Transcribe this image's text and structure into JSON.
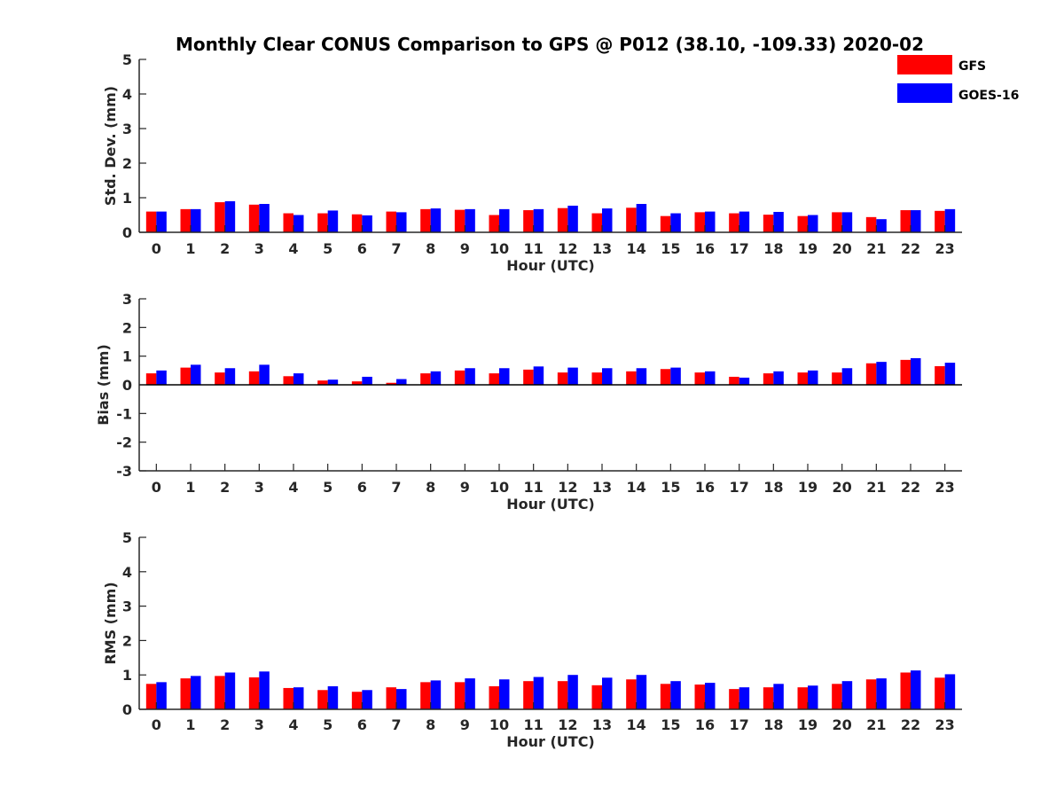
{
  "title": "Monthly Clear CONUS Comparison to GPS @ P012 (38.10, -109.33) 2020-02",
  "legend": {
    "placement": "top-right",
    "items": [
      {
        "name": "GFS",
        "color": "#ff0000"
      },
      {
        "name": "GOES-16",
        "color": "#0000ff"
      }
    ]
  },
  "chart_data": [
    {
      "type": "bar",
      "xlabel": "Hour (UTC)",
      "ylabel": "Std. Dev. (mm)",
      "ylim": [
        0,
        5
      ],
      "yticks": [
        0,
        1,
        2,
        3,
        4,
        5
      ],
      "categories": [
        "0",
        "1",
        "2",
        "3",
        "4",
        "5",
        "6",
        "7",
        "8",
        "9",
        "10",
        "11",
        "12",
        "13",
        "14",
        "15",
        "16",
        "17",
        "18",
        "19",
        "20",
        "21",
        "22",
        "23"
      ],
      "series": [
        {
          "name": "GFS",
          "color": "#ff0000",
          "values": [
            0.6,
            0.67,
            0.87,
            0.8,
            0.55,
            0.55,
            0.52,
            0.6,
            0.67,
            0.65,
            0.5,
            0.64,
            0.7,
            0.55,
            0.71,
            0.47,
            0.58,
            0.55,
            0.51,
            0.47,
            0.58,
            0.44,
            0.64,
            0.62
          ]
        },
        {
          "name": "GOES-16",
          "color": "#0000ff",
          "values": [
            0.6,
            0.67,
            0.9,
            0.82,
            0.5,
            0.63,
            0.49,
            0.58,
            0.69,
            0.67,
            0.67,
            0.67,
            0.77,
            0.69,
            0.82,
            0.55,
            0.6,
            0.6,
            0.59,
            0.5,
            0.58,
            0.38,
            0.64,
            0.67
          ]
        }
      ]
    },
    {
      "type": "bar",
      "xlabel": "Hour (UTC)",
      "ylabel": "Bias (mm)",
      "ylim": [
        -3,
        3
      ],
      "yticks": [
        -3,
        -2,
        -1,
        0,
        1,
        2,
        3
      ],
      "categories": [
        "0",
        "1",
        "2",
        "3",
        "4",
        "5",
        "6",
        "7",
        "8",
        "9",
        "10",
        "11",
        "12",
        "13",
        "14",
        "15",
        "16",
        "17",
        "18",
        "19",
        "20",
        "21",
        "22",
        "23"
      ],
      "series": [
        {
          "name": "GFS",
          "color": "#ff0000",
          "values": [
            0.4,
            0.6,
            0.43,
            0.47,
            0.3,
            0.15,
            0.12,
            0.07,
            0.4,
            0.5,
            0.4,
            0.53,
            0.43,
            0.43,
            0.47,
            0.55,
            0.43,
            0.28,
            0.4,
            0.43,
            0.43,
            0.75,
            0.87,
            0.65
          ]
        },
        {
          "name": "GOES-16",
          "color": "#0000ff",
          "values": [
            0.5,
            0.7,
            0.58,
            0.7,
            0.4,
            0.18,
            0.28,
            0.2,
            0.47,
            0.58,
            0.58,
            0.64,
            0.6,
            0.58,
            0.58,
            0.6,
            0.47,
            0.25,
            0.47,
            0.5,
            0.58,
            0.8,
            0.93,
            0.77
          ]
        }
      ]
    },
    {
      "type": "bar",
      "xlabel": "Hour (UTC)",
      "ylabel": "RMS (mm)",
      "ylim": [
        0,
        5
      ],
      "yticks": [
        0,
        1,
        2,
        3,
        4,
        5
      ],
      "categories": [
        "0",
        "1",
        "2",
        "3",
        "4",
        "5",
        "6",
        "7",
        "8",
        "9",
        "10",
        "11",
        "12",
        "13",
        "14",
        "15",
        "16",
        "17",
        "18",
        "19",
        "20",
        "21",
        "22",
        "23"
      ],
      "series": [
        {
          "name": "GFS",
          "color": "#ff0000",
          "values": [
            0.74,
            0.9,
            0.97,
            0.93,
            0.62,
            0.56,
            0.51,
            0.64,
            0.79,
            0.79,
            0.67,
            0.82,
            0.82,
            0.7,
            0.87,
            0.74,
            0.72,
            0.59,
            0.64,
            0.64,
            0.74,
            0.87,
            1.07,
            0.92
          ]
        },
        {
          "name": "GOES-16",
          "color": "#0000ff",
          "values": [
            0.79,
            0.97,
            1.07,
            1.1,
            0.64,
            0.67,
            0.56,
            0.59,
            0.84,
            0.9,
            0.87,
            0.94,
            1.0,
            0.92,
            1.0,
            0.82,
            0.77,
            0.64,
            0.74,
            0.69,
            0.82,
            0.9,
            1.13,
            1.02
          ]
        }
      ]
    }
  ]
}
